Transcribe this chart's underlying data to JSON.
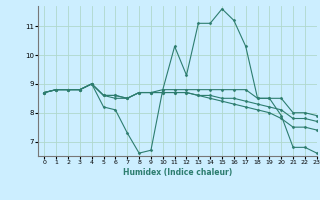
{
  "title": "",
  "xlabel": "Humidex (Indice chaleur)",
  "ylabel": "",
  "background_color": "#cceeff",
  "grid_color": "#b0d8cc",
  "line_color": "#2d7d6f",
  "xlim": [
    -0.5,
    23
  ],
  "ylim": [
    6.5,
    11.7
  ],
  "yticks": [
    7,
    8,
    9,
    10,
    11
  ],
  "xticks": [
    0,
    1,
    2,
    3,
    4,
    5,
    6,
    7,
    8,
    9,
    10,
    11,
    12,
    13,
    14,
    15,
    16,
    17,
    18,
    19,
    20,
    21,
    22,
    23
  ],
  "lines": [
    {
      "x": [
        0,
        1,
        2,
        3,
        4,
        5,
        6,
        7,
        8,
        9,
        10,
        11,
        12,
        13,
        14,
        15,
        16,
        17,
        18,
        19,
        20,
        21,
        22,
        23
      ],
      "y": [
        8.7,
        8.8,
        8.8,
        8.8,
        9.0,
        8.2,
        8.1,
        7.3,
        6.6,
        6.7,
        8.8,
        10.3,
        9.3,
        11.1,
        11.1,
        11.6,
        11.2,
        10.3,
        8.5,
        8.5,
        7.9,
        6.8,
        6.8,
        6.6
      ]
    },
    {
      "x": [
        0,
        1,
        2,
        3,
        4,
        5,
        6,
        7,
        8,
        9,
        10,
        11,
        12,
        13,
        14,
        15,
        16,
        17,
        18,
        19,
        20,
        21,
        22,
        23
      ],
      "y": [
        8.7,
        8.8,
        8.8,
        8.8,
        9.0,
        8.6,
        8.6,
        8.5,
        8.7,
        8.7,
        8.8,
        8.8,
        8.8,
        8.8,
        8.8,
        8.8,
        8.8,
        8.8,
        8.5,
        8.5,
        8.5,
        8.0,
        8.0,
        7.9
      ]
    },
    {
      "x": [
        0,
        1,
        2,
        3,
        4,
        5,
        6,
        7,
        8,
        9,
        10,
        11,
        12,
        13,
        14,
        15,
        16,
        17,
        18,
        19,
        20,
        21,
        22,
        23
      ],
      "y": [
        8.7,
        8.8,
        8.8,
        8.8,
        9.0,
        8.6,
        8.6,
        8.5,
        8.7,
        8.7,
        8.7,
        8.7,
        8.7,
        8.6,
        8.6,
        8.5,
        8.5,
        8.4,
        8.3,
        8.2,
        8.1,
        7.8,
        7.8,
        7.7
      ]
    },
    {
      "x": [
        0,
        1,
        2,
        3,
        4,
        5,
        6,
        7,
        8,
        9,
        10,
        11,
        12,
        13,
        14,
        15,
        16,
        17,
        18,
        19,
        20,
        21,
        22,
        23
      ],
      "y": [
        8.7,
        8.8,
        8.8,
        8.8,
        9.0,
        8.6,
        8.5,
        8.5,
        8.7,
        8.7,
        8.7,
        8.7,
        8.7,
        8.6,
        8.5,
        8.4,
        8.3,
        8.2,
        8.1,
        8.0,
        7.8,
        7.5,
        7.5,
        7.4
      ]
    }
  ]
}
